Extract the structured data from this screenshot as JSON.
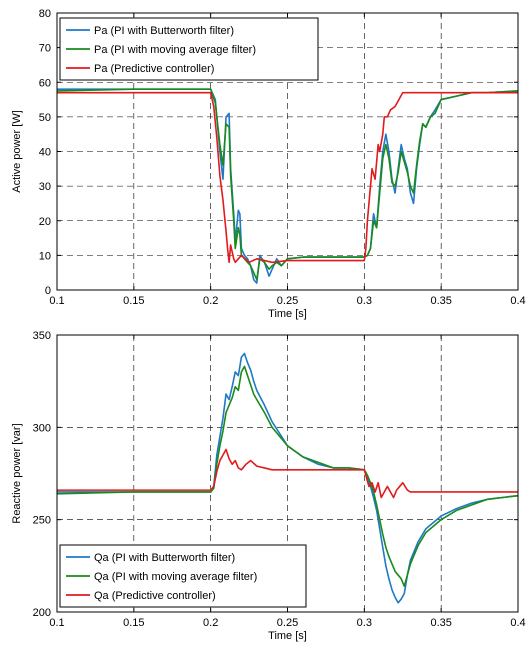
{
  "chart_data": [
    {
      "type": "line",
      "xlabel": "Time [s]",
      "ylabel": "Active power [W]",
      "xlim": [
        0.1,
        0.4
      ],
      "ylim": [
        0,
        80
      ],
      "xticks": [
        0.1,
        0.15,
        0.2,
        0.25,
        0.3,
        0.35,
        0.4
      ],
      "xtick_labels": [
        "0.1",
        "0.15",
        "0.2",
        "0.25",
        "0.3",
        "0.35",
        "0.4"
      ],
      "yticks": [
        0,
        10,
        20,
        30,
        40,
        50,
        60,
        70,
        80
      ],
      "ytick_labels": [
        "0",
        "10",
        "20",
        "30",
        "40",
        "50",
        "60",
        "70",
        "80"
      ],
      "grid": true,
      "legend_position": "top-left",
      "series": [
        {
          "name": "Pa (PI with Butterworth filter)",
          "color": "#1f78c8",
          "x": [
            0.1,
            0.15,
            0.2,
            0.203,
            0.206,
            0.208,
            0.21,
            0.212,
            0.213,
            0.215,
            0.216,
            0.218,
            0.219,
            0.22,
            0.222,
            0.224,
            0.226,
            0.228,
            0.23,
            0.232,
            0.235,
            0.238,
            0.24,
            0.243,
            0.246,
            0.25,
            0.26,
            0.27,
            0.28,
            0.29,
            0.3,
            0.302,
            0.304,
            0.306,
            0.308,
            0.31,
            0.312,
            0.314,
            0.316,
            0.318,
            0.32,
            0.322,
            0.324,
            0.326,
            0.328,
            0.33,
            0.332,
            0.334,
            0.336,
            0.338,
            0.34,
            0.343,
            0.346,
            0.35,
            0.36,
            0.37,
            0.38,
            0.4
          ],
          "y": [
            58,
            58,
            58,
            55,
            40,
            32,
            50,
            51,
            35,
            22,
            14,
            23,
            22,
            12,
            10,
            9,
            7,
            3,
            2,
            10,
            8,
            4,
            6,
            9,
            7,
            9,
            9.5,
            9.5,
            9.5,
            9.5,
            9.5,
            10,
            12,
            22,
            18,
            30,
            40,
            45,
            40,
            32,
            28,
            35,
            42,
            38,
            35,
            28,
            25,
            35,
            42,
            48,
            47,
            50,
            52,
            55,
            56,
            57,
            57,
            57.5
          ]
        },
        {
          "name": "Pa (PI with moving average filter)",
          "color": "#1a8a1a",
          "x": [
            0.1,
            0.15,
            0.2,
            0.203,
            0.206,
            0.208,
            0.21,
            0.212,
            0.213,
            0.215,
            0.216,
            0.218,
            0.219,
            0.22,
            0.222,
            0.224,
            0.226,
            0.228,
            0.23,
            0.232,
            0.235,
            0.238,
            0.24,
            0.243,
            0.246,
            0.25,
            0.26,
            0.27,
            0.28,
            0.29,
            0.3,
            0.302,
            0.304,
            0.306,
            0.308,
            0.31,
            0.312,
            0.314,
            0.316,
            0.318,
            0.32,
            0.322,
            0.324,
            0.326,
            0.328,
            0.33,
            0.332,
            0.334,
            0.336,
            0.338,
            0.34,
            0.343,
            0.346,
            0.35,
            0.36,
            0.37,
            0.38,
            0.4
          ],
          "y": [
            57.5,
            58,
            58,
            54,
            42,
            36,
            48,
            47,
            33,
            20,
            12,
            18,
            16,
            10,
            9,
            8,
            7,
            5,
            3,
            9,
            8,
            6,
            7,
            8,
            7,
            9,
            9.5,
            9.5,
            9.5,
            9.5,
            9.5,
            10,
            12,
            20,
            18,
            28,
            38,
            42,
            38,
            31,
            30,
            34,
            40,
            37,
            34,
            30,
            28,
            36,
            43,
            48,
            47,
            50,
            51,
            55,
            56,
            57,
            57,
            57.5
          ]
        },
        {
          "name": "Pa (Predictive controller)",
          "color": "#e31a1c",
          "x": [
            0.1,
            0.2,
            0.202,
            0.204,
            0.206,
            0.208,
            0.21,
            0.211,
            0.212,
            0.213,
            0.215,
            0.216,
            0.218,
            0.22,
            0.225,
            0.23,
            0.24,
            0.25,
            0.3,
            0.301,
            0.302,
            0.303,
            0.305,
            0.307,
            0.309,
            0.31,
            0.312,
            0.313,
            0.315,
            0.317,
            0.32,
            0.325,
            0.33,
            0.35,
            0.4
          ],
          "y": [
            57,
            57,
            53,
            44,
            33,
            26,
            17,
            12,
            8,
            13,
            9,
            8,
            9,
            10,
            8,
            9,
            8,
            8.5,
            8.5,
            12,
            20,
            25,
            35,
            32,
            42,
            40,
            45,
            50,
            50,
            52,
            53,
            57,
            57,
            57,
            57
          ]
        }
      ]
    },
    {
      "type": "line",
      "xlabel": "Time [s]",
      "ylabel": "Reactive power [var]",
      "xlim": [
        0.1,
        0.4
      ],
      "ylim": [
        200,
        350
      ],
      "xticks": [
        0.1,
        0.15,
        0.2,
        0.25,
        0.3,
        0.35,
        0.4
      ],
      "xtick_labels": [
        "0.1",
        "0.15",
        "0.2",
        "0.25",
        "0.3",
        "0.35",
        "0.4"
      ],
      "yticks": [
        200,
        250,
        300,
        350
      ],
      "ytick_labels": [
        "200",
        "250",
        "300",
        "350"
      ],
      "grid": true,
      "legend_position": "bottom-left",
      "series": [
        {
          "name": "Qa (PI with Butterworth filter)",
          "color": "#1f78c8",
          "x": [
            0.1,
            0.15,
            0.2,
            0.202,
            0.204,
            0.206,
            0.208,
            0.21,
            0.212,
            0.214,
            0.216,
            0.218,
            0.22,
            0.222,
            0.224,
            0.226,
            0.228,
            0.23,
            0.235,
            0.24,
            0.25,
            0.26,
            0.27,
            0.28,
            0.29,
            0.3,
            0.302,
            0.304,
            0.306,
            0.308,
            0.31,
            0.312,
            0.314,
            0.316,
            0.318,
            0.32,
            0.322,
            0.324,
            0.326,
            0.328,
            0.33,
            0.335,
            0.34,
            0.35,
            0.36,
            0.37,
            0.38,
            0.39,
            0.4
          ],
          "y": [
            265,
            265,
            265,
            268,
            285,
            295,
            305,
            318,
            315,
            322,
            330,
            328,
            338,
            340,
            335,
            331,
            325,
            320,
            312,
            303,
            290,
            284,
            280,
            278,
            278,
            277,
            273,
            268,
            262,
            255,
            245,
            235,
            225,
            218,
            212,
            208,
            205,
            207,
            210,
            220,
            228,
            238,
            245,
            252,
            256,
            259,
            261,
            262,
            263
          ]
        },
        {
          "name": "Qa (PI with moving average filter)",
          "color": "#1a8a1a",
          "x": [
            0.1,
            0.15,
            0.2,
            0.202,
            0.204,
            0.206,
            0.208,
            0.21,
            0.212,
            0.214,
            0.216,
            0.218,
            0.22,
            0.222,
            0.224,
            0.226,
            0.228,
            0.23,
            0.235,
            0.24,
            0.25,
            0.26,
            0.27,
            0.28,
            0.29,
            0.3,
            0.302,
            0.304,
            0.306,
            0.308,
            0.31,
            0.312,
            0.314,
            0.316,
            0.318,
            0.32,
            0.322,
            0.324,
            0.326,
            0.328,
            0.33,
            0.335,
            0.34,
            0.35,
            0.36,
            0.37,
            0.38,
            0.39,
            0.4
          ],
          "y": [
            264,
            265,
            265,
            267,
            280,
            290,
            298,
            308,
            312,
            316,
            322,
            320,
            330,
            333,
            328,
            323,
            318,
            315,
            308,
            300,
            290,
            284,
            281,
            278,
            278,
            277,
            274,
            270,
            265,
            258,
            250,
            242,
            235,
            230,
            226,
            222,
            220,
            218,
            214,
            220,
            226,
            236,
            243,
            250,
            255,
            258,
            261,
            262,
            263
          ]
        },
        {
          "name": "Qa (Predictive controller)",
          "color": "#e31a1c",
          "x": [
            0.1,
            0.2,
            0.202,
            0.204,
            0.206,
            0.208,
            0.21,
            0.212,
            0.214,
            0.216,
            0.218,
            0.22,
            0.223,
            0.226,
            0.23,
            0.235,
            0.24,
            0.25,
            0.3,
            0.301,
            0.303,
            0.305,
            0.307,
            0.309,
            0.311,
            0.313,
            0.315,
            0.317,
            0.319,
            0.321,
            0.323,
            0.325,
            0.328,
            0.33,
            0.34,
            0.4
          ],
          "y": [
            266,
            266,
            268,
            276,
            282,
            285,
            288,
            283,
            280,
            282,
            278,
            277,
            280,
            282,
            279,
            278,
            277,
            277,
            277,
            274,
            268,
            270,
            265,
            270,
            262,
            265,
            268,
            265,
            262,
            266,
            268,
            270,
            266,
            265,
            265,
            265
          ]
        }
      ]
    }
  ]
}
